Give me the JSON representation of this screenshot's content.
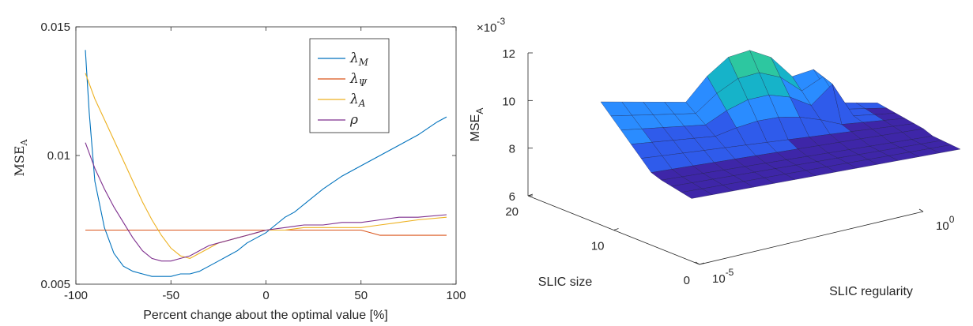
{
  "chart_data": [
    {
      "type": "line",
      "xlabel": "Percent change about the optimal value [%]",
      "ylabel": "MSE",
      "ylabel_sub": "A",
      "xlim": [
        -100,
        100
      ],
      "ylim": [
        0.005,
        0.015
      ],
      "xticks": [
        "-100",
        "-50",
        "0",
        "50",
        "100"
      ],
      "yticks": [
        "0.005",
        "0.01",
        "0.015"
      ],
      "grid": false,
      "legend_position": "top-right",
      "series": [
        {
          "name": "λ",
          "sub": "M",
          "color": "#0072BD",
          "x": [
            -95,
            -93,
            -90,
            -85,
            -80,
            -75,
            -70,
            -65,
            -60,
            -55,
            -50,
            -45,
            -40,
            -35,
            -30,
            -25,
            -20,
            -15,
            -10,
            -5,
            0,
            5,
            10,
            15,
            20,
            30,
            40,
            50,
            60,
            65,
            70,
            80,
            90,
            95
          ],
          "y": [
            0.0141,
            0.0117,
            0.009,
            0.0072,
            0.0062,
            0.0057,
            0.0055,
            0.0054,
            0.0053,
            0.0053,
            0.0053,
            0.0054,
            0.0054,
            0.0055,
            0.0057,
            0.0059,
            0.0061,
            0.0063,
            0.0066,
            0.0068,
            0.007,
            0.0073,
            0.0076,
            0.0078,
            0.0081,
            0.0087,
            0.0092,
            0.0096,
            0.01,
            0.0102,
            0.0104,
            0.0108,
            0.0113,
            0.0115
          ]
        },
        {
          "name": "λ",
          "sub": "Ψ",
          "color": "#D95319",
          "x": [
            -95,
            -50,
            0,
            50,
            60,
            95
          ],
          "y": [
            0.0071,
            0.0071,
            0.0071,
            0.0071,
            0.0069,
            0.0069
          ]
        },
        {
          "name": "λ",
          "sub": "A",
          "color": "#EDB120",
          "x": [
            -95,
            -90,
            -85,
            -80,
            -75,
            -70,
            -65,
            -60,
            -55,
            -50,
            -45,
            -40,
            -35,
            -30,
            -25,
            -20,
            -15,
            -10,
            -5,
            0,
            10,
            20,
            30,
            40,
            50,
            60,
            70,
            80,
            95
          ],
          "y": [
            0.0132,
            0.0122,
            0.0114,
            0.0106,
            0.0098,
            0.009,
            0.0082,
            0.0075,
            0.0069,
            0.0064,
            0.0061,
            0.006,
            0.0062,
            0.0064,
            0.0066,
            0.0067,
            0.0068,
            0.0069,
            0.007,
            0.0071,
            0.0071,
            0.0072,
            0.0072,
            0.0072,
            0.0072,
            0.0073,
            0.0074,
            0.0075,
            0.0076
          ]
        },
        {
          "name": "ρ",
          "sub": "",
          "color": "#7E2F8E",
          "x": [
            -95,
            -90,
            -85,
            -80,
            -75,
            -70,
            -65,
            -60,
            -55,
            -50,
            -45,
            -40,
            -35,
            -30,
            -25,
            -20,
            -15,
            -10,
            -5,
            0,
            10,
            20,
            30,
            40,
            50,
            60,
            70,
            80,
            95
          ],
          "y": [
            0.0105,
            0.0095,
            0.0087,
            0.008,
            0.0074,
            0.0068,
            0.0063,
            0.006,
            0.0059,
            0.0059,
            0.006,
            0.0061,
            0.0063,
            0.0065,
            0.0066,
            0.0067,
            0.0068,
            0.0069,
            0.007,
            0.0071,
            0.0072,
            0.0073,
            0.0073,
            0.0074,
            0.0074,
            0.0075,
            0.0076,
            0.0076,
            0.0077
          ]
        }
      ]
    },
    {
      "type": "surface",
      "exponent_label": "×10",
      "exponent_power": "-3",
      "zlabel": "MSE",
      "zlabel_sub": "A",
      "zticks": [
        "6",
        "8",
        "10",
        "12"
      ],
      "zlim": [
        6,
        12
      ],
      "ylabel": "SLIC size",
      "yticks": [
        "0",
        "10",
        "20"
      ],
      "ylim": [
        0,
        20
      ],
      "xlabel": "SLIC regularity",
      "xtick_base": "10",
      "xtick_powers": [
        "-5",
        "0"
      ],
      "xlim_exponent": [
        -5,
        0
      ],
      "colormap": [
        "#3E26A8",
        "#2F5BEB",
        "#2A8CFF",
        "#16B3C9",
        "#2DC7A0"
      ],
      "grid": false
    }
  ]
}
